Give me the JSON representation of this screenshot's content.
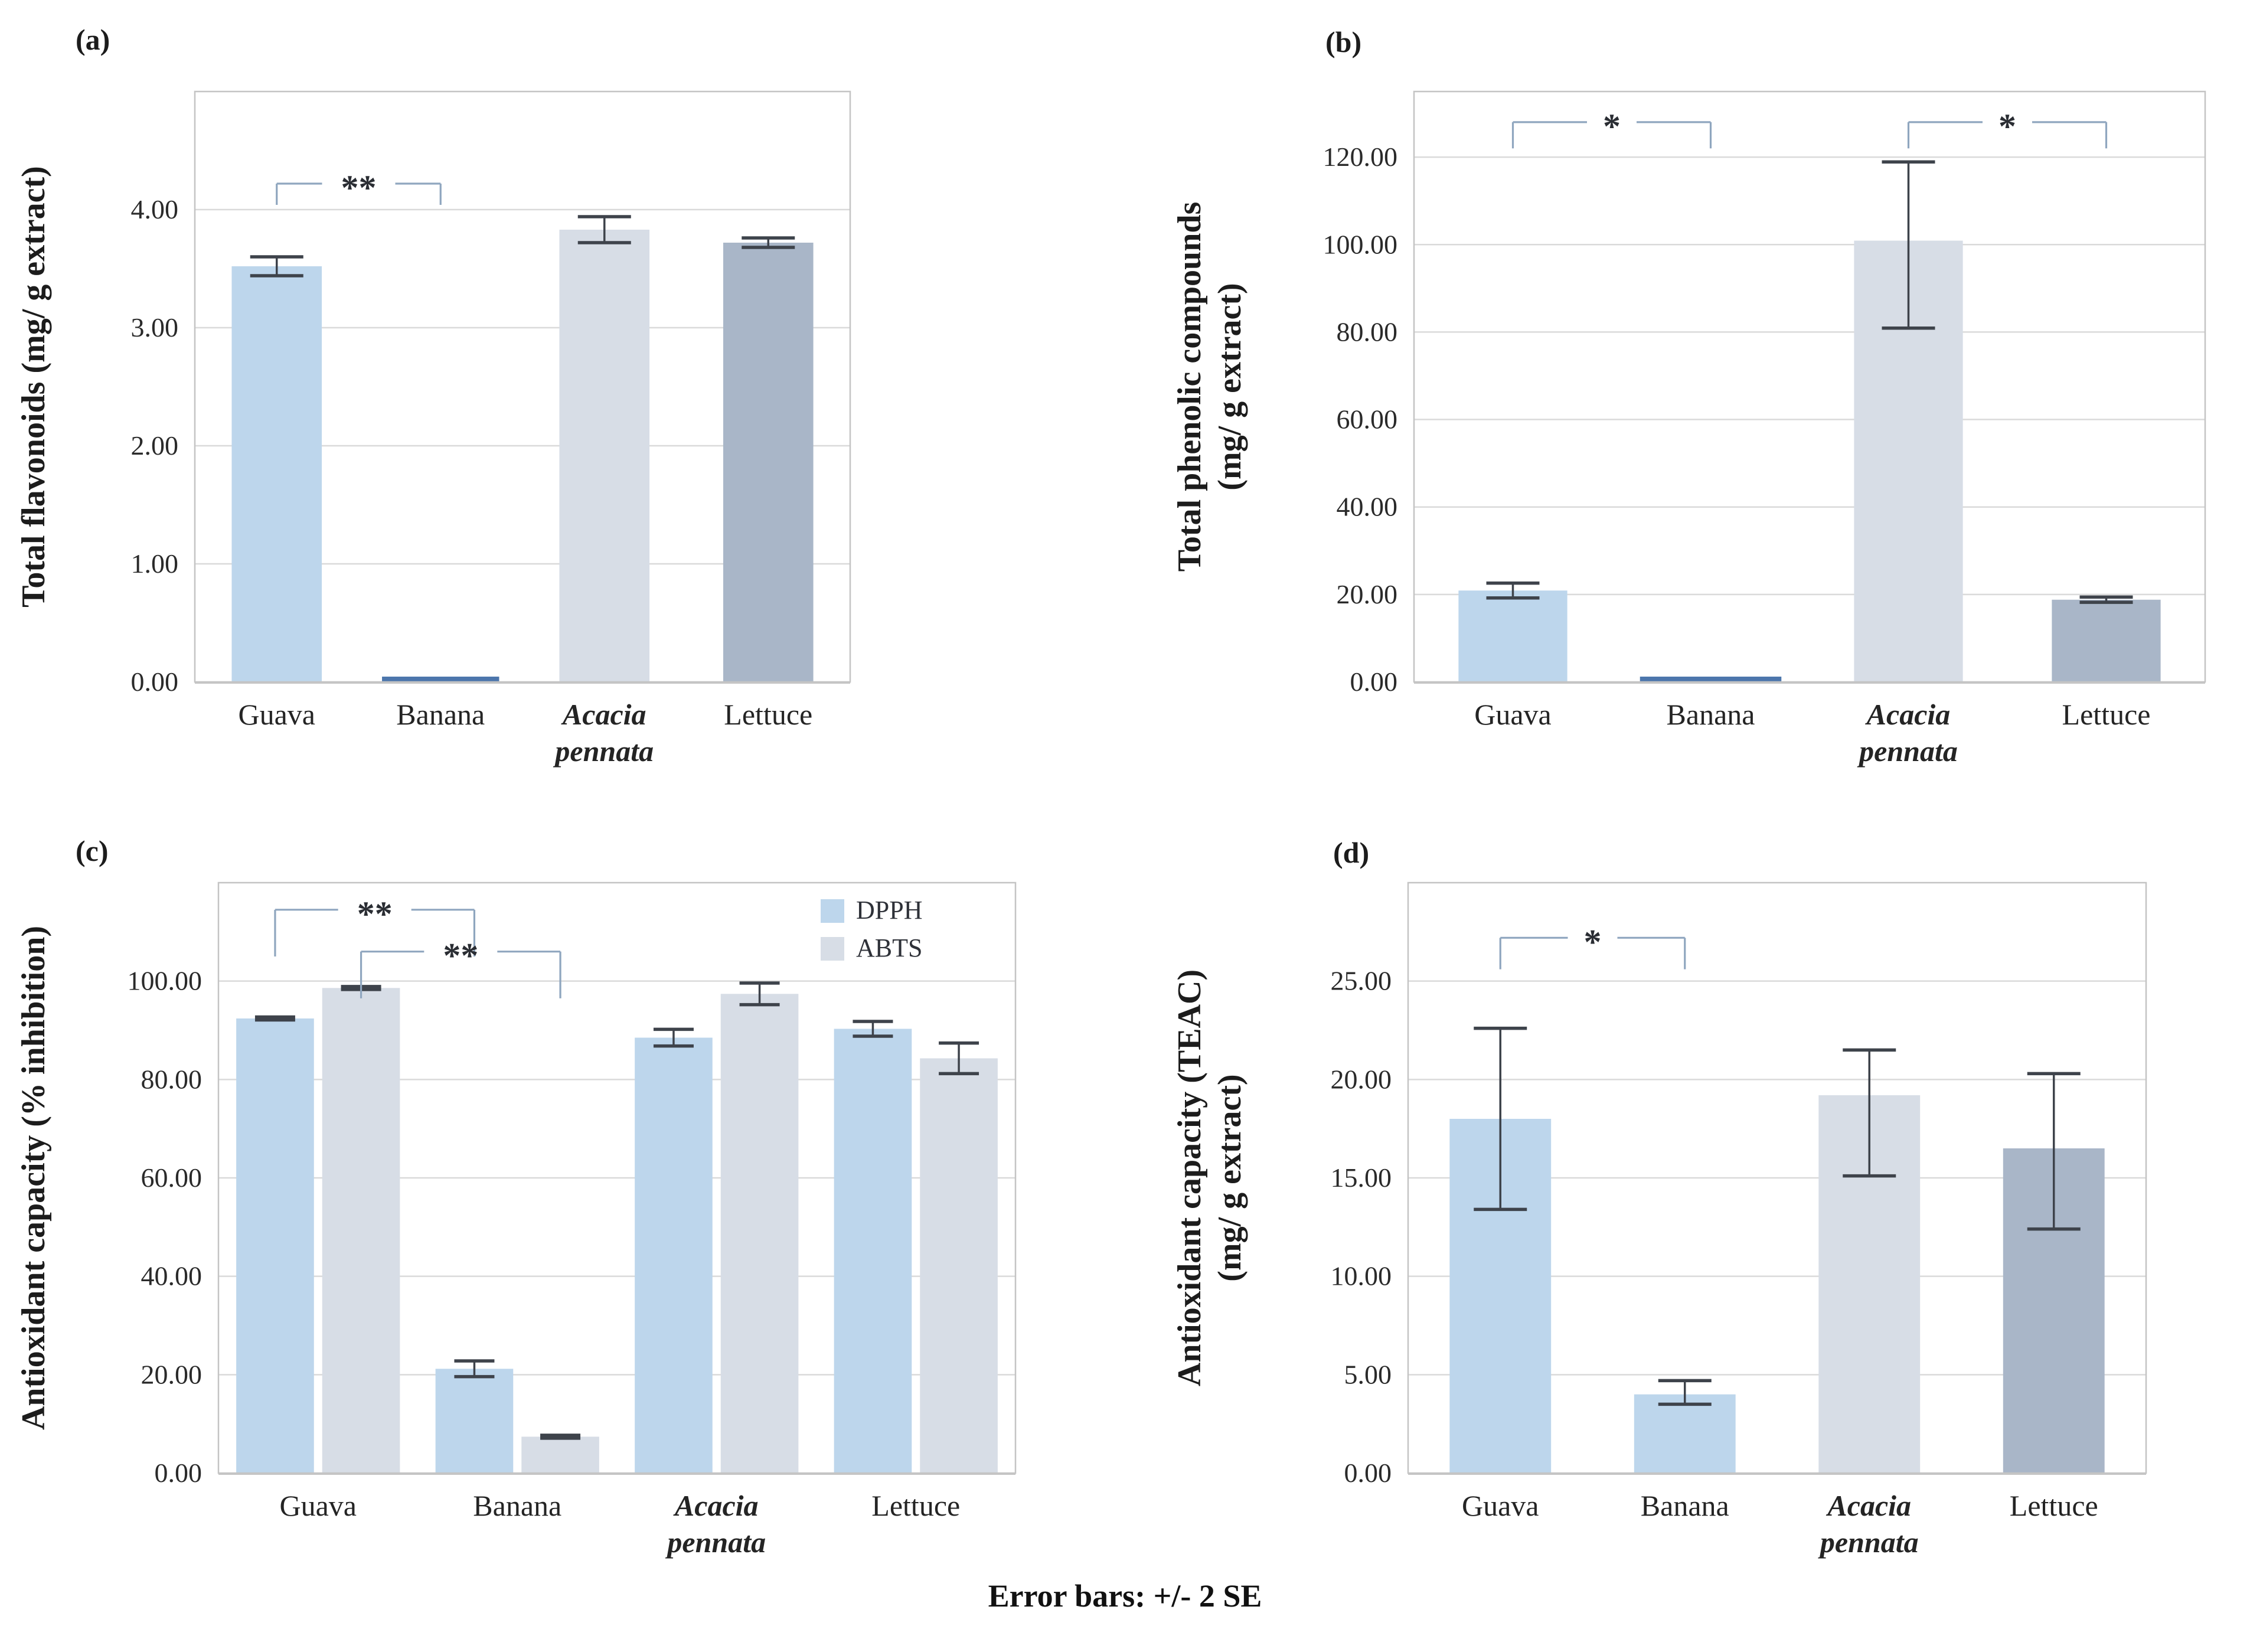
{
  "figure_caption": "Error bars: +/- 2 SE",
  "colors": {
    "light_blue": "#BDD6EC",
    "light_gray": "#D7DDE6",
    "slate_blue": "#A9B6C8",
    "zero_line_blue": "#4C76AC",
    "error_bar": "#3E434B",
    "bracket": "#8FA6BF",
    "bracket_label": "#2A2D33",
    "gridline": "#DADADA",
    "axis_line": "#C6C6C6",
    "plot_border": "#C4C4C4",
    "text_dark": "#1C1C1C",
    "tick_text": "#2A2A2A"
  },
  "chart_data": [
    {
      "id": "a",
      "panel_letter": "(a)",
      "type": "bar",
      "title": "",
      "ylabel_lines": [
        "Total flavonoids  (mg/ g extract)"
      ],
      "xlabel": "",
      "ylim": [
        0,
        5.0
      ],
      "ytick_step": 1.0,
      "ytick_max": 4.0,
      "ytick_decimals": 2,
      "grid": true,
      "legend_position": "none",
      "groups": [
        {
          "label_lines": [
            "Guava"
          ],
          "italic": false,
          "bars": [
            {
              "value": 3.52,
              "err_lo": 0.08,
              "err_hi": 0.08,
              "color": "light_blue"
            }
          ]
        },
        {
          "label_lines": [
            "Banana"
          ],
          "italic": false,
          "bars": [
            {
              "value": 0.0,
              "zero_line": true,
              "color": "zero_line_blue"
            }
          ]
        },
        {
          "label_lines": [
            "Acacia",
            "pennata"
          ],
          "italic": true,
          "bars": [
            {
              "value": 3.83,
              "err_lo": 0.11,
              "err_hi": 0.11,
              "color": "light_gray"
            }
          ]
        },
        {
          "label_lines": [
            "Lettuce"
          ],
          "italic": false,
          "bars": [
            {
              "value": 3.72,
              "err_lo": 0.04,
              "err_hi": 0.04,
              "color": "slate_blue"
            }
          ]
        }
      ],
      "significance_brackets": [
        {
          "from_group": 0,
          "from_bar": 0,
          "to_group": 1,
          "to_bar": 0,
          "y": 4.22,
          "drop": 0.18,
          "label": "**"
        }
      ]
    },
    {
      "id": "b",
      "panel_letter": "(b)",
      "type": "bar",
      "title": "",
      "ylabel_lines": [
        "Total phenolic compounds",
        "(mg/ g extract)"
      ],
      "xlabel": "",
      "ylim": [
        0,
        135
      ],
      "ytick_step": 20,
      "ytick_max": 120,
      "ytick_decimals": 2,
      "grid": true,
      "legend_position": "none",
      "groups": [
        {
          "label_lines": [
            "Guava"
          ],
          "italic": false,
          "bars": [
            {
              "value": 20.9,
              "err_lo": 1.7,
              "err_hi": 1.7,
              "color": "light_blue"
            }
          ]
        },
        {
          "label_lines": [
            "Banana"
          ],
          "italic": false,
          "bars": [
            {
              "value": 0.0,
              "zero_line": true,
              "color": "zero_line_blue"
            }
          ]
        },
        {
          "label_lines": [
            "Acacia",
            "pennata"
          ],
          "italic": true,
          "bars": [
            {
              "value": 100.9,
              "err_lo": 20.0,
              "err_hi": 18.0,
              "color": "light_gray"
            }
          ]
        },
        {
          "label_lines": [
            "Lettuce"
          ],
          "italic": false,
          "bars": [
            {
              "value": 18.8,
              "err_lo": 0.6,
              "err_hi": 0.6,
              "color": "slate_blue"
            }
          ]
        }
      ],
      "significance_brackets": [
        {
          "from_group": 0,
          "from_bar": 0,
          "to_group": 1,
          "to_bar": 0,
          "y": 128,
          "drop": 6,
          "label": "*"
        },
        {
          "from_group": 2,
          "from_bar": 0,
          "to_group": 3,
          "to_bar": 0,
          "y": 128,
          "drop": 6,
          "label": "*"
        }
      ]
    },
    {
      "id": "c",
      "panel_letter": "(c)",
      "type": "bar",
      "title": "",
      "ylabel_lines": [
        "Antioxidant capacity (% inhibition)"
      ],
      "xlabel": "",
      "ylim": [
        0,
        120
      ],
      "ytick_step": 20,
      "ytick_max": 100,
      "ytick_decimals": 2,
      "grid": true,
      "legend_position": "top-right",
      "series": [
        {
          "name": "DPPH",
          "color": "light_blue"
        },
        {
          "name": "ABTS",
          "color": "light_gray"
        }
      ],
      "groups": [
        {
          "label_lines": [
            "Guava"
          ],
          "italic": false,
          "bars": [
            {
              "value": 92.4,
              "err_lo": 0.3,
              "err_hi": 0.3,
              "color": "light_blue"
            },
            {
              "value": 98.6,
              "err_lo": 0.3,
              "err_hi": 0.3,
              "color": "light_gray"
            }
          ]
        },
        {
          "label_lines": [
            "Banana"
          ],
          "italic": false,
          "bars": [
            {
              "value": 21.2,
              "err_lo": 1.6,
              "err_hi": 1.6,
              "color": "light_blue"
            },
            {
              "value": 7.4,
              "err_lo": 0.3,
              "err_hi": 0.3,
              "color": "light_gray"
            }
          ]
        },
        {
          "label_lines": [
            "Acacia",
            "pennata"
          ],
          "italic": true,
          "bars": [
            {
              "value": 88.5,
              "err_lo": 1.7,
              "err_hi": 1.7,
              "color": "light_blue"
            },
            {
              "value": 97.4,
              "err_lo": 2.2,
              "err_hi": 2.2,
              "color": "light_gray"
            }
          ]
        },
        {
          "label_lines": [
            "Lettuce"
          ],
          "italic": false,
          "bars": [
            {
              "value": 90.3,
              "err_lo": 1.5,
              "err_hi": 1.5,
              "color": "light_blue"
            },
            {
              "value": 84.3,
              "err_lo": 3.1,
              "err_hi": 3.1,
              "color": "light_gray"
            }
          ]
        }
      ],
      "significance_brackets": [
        {
          "from_group": 0,
          "from_bar": 0,
          "to_group": 1,
          "to_bar": 0,
          "y": 114.5,
          "drop": 9.5,
          "label": "**"
        },
        {
          "from_group": 0,
          "from_bar": 1,
          "to_group": 1,
          "to_bar": 1,
          "y": 106.0,
          "drop": 9.5,
          "label": "**"
        }
      ]
    },
    {
      "id": "d",
      "panel_letter": "(d)",
      "type": "bar",
      "title": "",
      "ylabel_lines": [
        "Antioxidant capacity (TEAC)",
        "(mg/ g extract)"
      ],
      "xlabel": "",
      "ylim": [
        0,
        30
      ],
      "ytick_step": 5,
      "ytick_max": 25,
      "ytick_decimals": 2,
      "grid": true,
      "legend_position": "none",
      "groups": [
        {
          "label_lines": [
            "Guava"
          ],
          "italic": false,
          "bars": [
            {
              "value": 18.0,
              "err_lo": 4.6,
              "err_hi": 4.6,
              "color": "light_blue"
            }
          ]
        },
        {
          "label_lines": [
            "Banana"
          ],
          "italic": false,
          "bars": [
            {
              "value": 4.0,
              "err_lo": 0.5,
              "err_hi": 0.7,
              "color": "light_blue"
            }
          ]
        },
        {
          "label_lines": [
            "Acacia",
            "pennata"
          ],
          "italic": true,
          "bars": [
            {
              "value": 19.2,
              "err_lo": 4.1,
              "err_hi": 2.3,
              "color": "light_gray"
            }
          ]
        },
        {
          "label_lines": [
            "Lettuce"
          ],
          "italic": false,
          "bars": [
            {
              "value": 16.5,
              "err_lo": 4.1,
              "err_hi": 3.8,
              "color": "slate_blue"
            }
          ]
        }
      ],
      "significance_brackets": [
        {
          "from_group": 0,
          "from_bar": 0,
          "to_group": 1,
          "to_bar": 0,
          "y": 27.2,
          "drop": 1.6,
          "label": "*"
        }
      ]
    }
  ]
}
